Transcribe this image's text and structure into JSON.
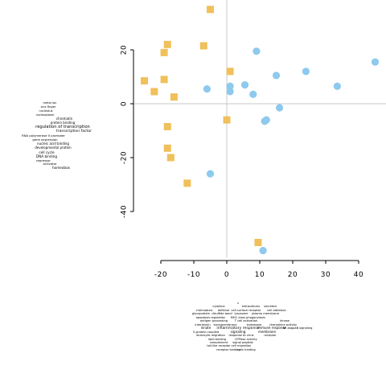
{
  "chart_data": {
    "type": "scatter",
    "title": "",
    "xlabel": "",
    "ylabel": "",
    "xlim": [
      -25,
      47
    ],
    "ylim": [
      -58,
      37
    ],
    "x_ticks": [
      -20,
      -10,
      0,
      10,
      20,
      30,
      40
    ],
    "y_ticks": [
      -40,
      -20,
      0,
      20
    ],
    "grid": false,
    "zero_lines": true,
    "series": [
      {
        "marker": "square",
        "color": "#f0c05a",
        "points": [
          {
            "x": -5,
            "y": 35
          },
          {
            "x": -18,
            "y": 22
          },
          {
            "x": -7,
            "y": 21.5
          },
          {
            "x": -19,
            "y": 19
          },
          {
            "x": 1,
            "y": 12
          },
          {
            "x": -25,
            "y": 8.5
          },
          {
            "x": -19,
            "y": 9
          },
          {
            "x": -22,
            "y": 4.5
          },
          {
            "x": -16,
            "y": 2.5
          },
          {
            "x": 0,
            "y": -6
          },
          {
            "x": -18,
            "y": -8.5
          },
          {
            "x": -18,
            "y": -16.5
          },
          {
            "x": -17,
            "y": -20
          },
          {
            "x": -12,
            "y": -29.5
          },
          {
            "x": 9.5,
            "y": -51.5
          }
        ]
      },
      {
        "marker": "circle",
        "color": "#8ec9ee",
        "points": [
          {
            "x": 9,
            "y": 19.5
          },
          {
            "x": 45,
            "y": 15.5
          },
          {
            "x": 24,
            "y": 12
          },
          {
            "x": 15,
            "y": 10.5
          },
          {
            "x": 5.5,
            "y": 7
          },
          {
            "x": 1,
            "y": 6.5
          },
          {
            "x": 33.5,
            "y": 6.5
          },
          {
            "x": -6,
            "y": 5.5
          },
          {
            "x": 1,
            "y": 4.5
          },
          {
            "x": 8,
            "y": 3.5
          },
          {
            "x": 16,
            "y": -1.5
          },
          {
            "x": 12,
            "y": -6
          },
          {
            "x": 11.5,
            "y": -6.5
          },
          {
            "x": -5,
            "y": -26
          },
          {
            "x": 11,
            "y": -54.5
          }
        ]
      }
    ],
    "left_word_cloud": [
      "transcription factor",
      "regulation of transcription",
      "DNA binding",
      "cell cycle"
    ],
    "bottom_word_cloud": [
      "inflammatory response",
      "signaling",
      "membrane",
      "immune response",
      "receptor"
    ]
  }
}
